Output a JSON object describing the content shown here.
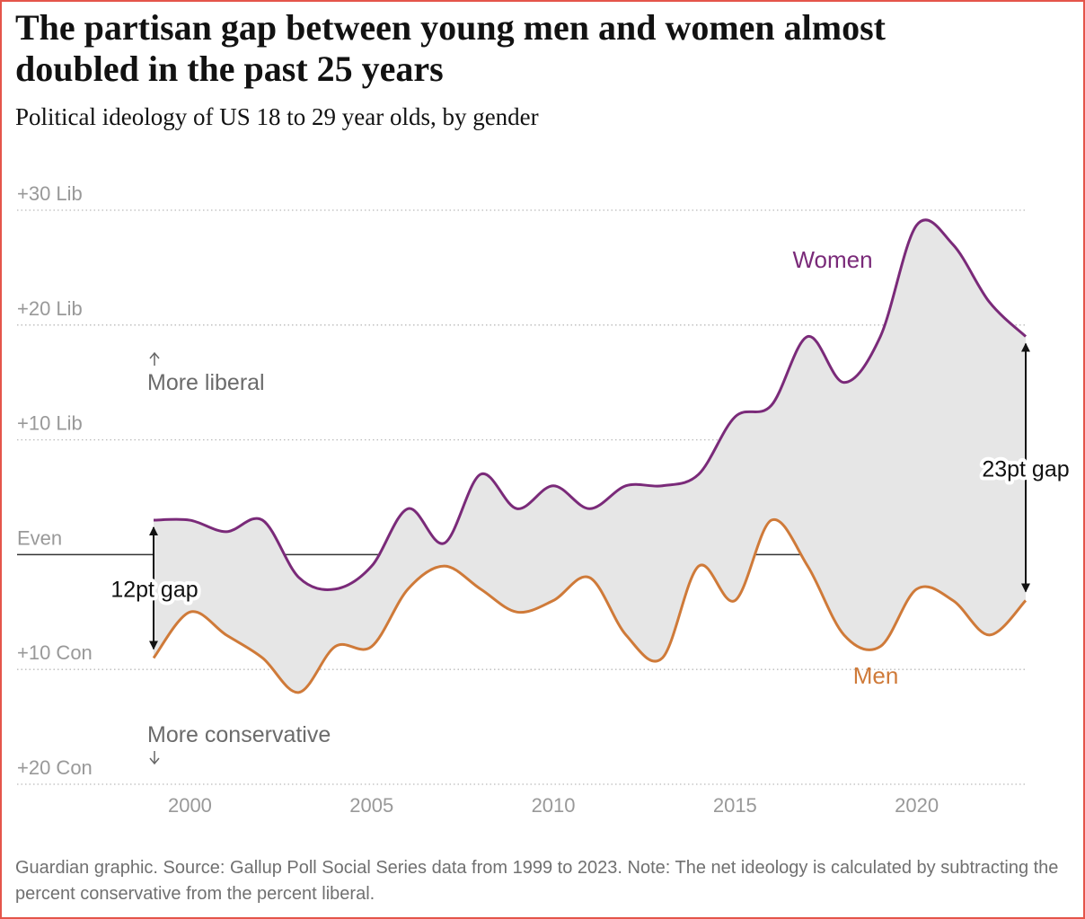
{
  "chart_data": {
    "type": "line",
    "title": "The partisan gap between young men and women almost doubled in the past 25 years",
    "subtitle": "Political ideology of US 18 to 29 year olds, by gender",
    "x": [
      1999,
      2000,
      2001,
      2002,
      2003,
      2004,
      2005,
      2006,
      2007,
      2008,
      2009,
      2010,
      2011,
      2012,
      2013,
      2014,
      2015,
      2016,
      2017,
      2018,
      2019,
      2020,
      2021,
      2022,
      2023
    ],
    "series": [
      {
        "name": "Women",
        "color": "#7a2a79",
        "values": [
          3,
          3,
          2,
          3,
          -2,
          -3,
          -1,
          4,
          1,
          7,
          4,
          6,
          4,
          6,
          6,
          7,
          12,
          13,
          19,
          15,
          19,
          28.7,
          27,
          22,
          19
        ]
      },
      {
        "name": "Men",
        "color": "#cf7a39",
        "values": [
          -9,
          -5,
          -7,
          -9,
          -12,
          -8,
          -8,
          -3,
          -1,
          -3,
          -5,
          -4,
          -2,
          -7,
          -9,
          -1,
          -4,
          3,
          -1,
          -7,
          -8,
          -3,
          -4,
          -7,
          -4
        ]
      }
    ],
    "xlim": [
      1999,
      2023
    ],
    "xticks": [
      2000,
      2005,
      2010,
      2015,
      2020
    ],
    "ylim": [
      -20,
      30
    ],
    "yticks": [
      {
        "value": -20,
        "label": "+20 Con"
      },
      {
        "value": -10,
        "label": "+10 Con"
      },
      {
        "value": 0,
        "label": "Even"
      },
      {
        "value": 10,
        "label": "+10 Lib"
      },
      {
        "value": 20,
        "label": "+20 Lib"
      },
      {
        "value": 30,
        "label": "+30 Lib"
      }
    ],
    "grid": true,
    "fill_between": true,
    "annotations": [
      "More liberal",
      "More conservative",
      "12pt gap",
      "23pt gap"
    ],
    "footer": "Guardian graphic. Source: Gallup Poll Social Series data from 1999 to 2023. Note: The net ideology is calculated by subtracting the percent conservative from the percent liberal."
  }
}
